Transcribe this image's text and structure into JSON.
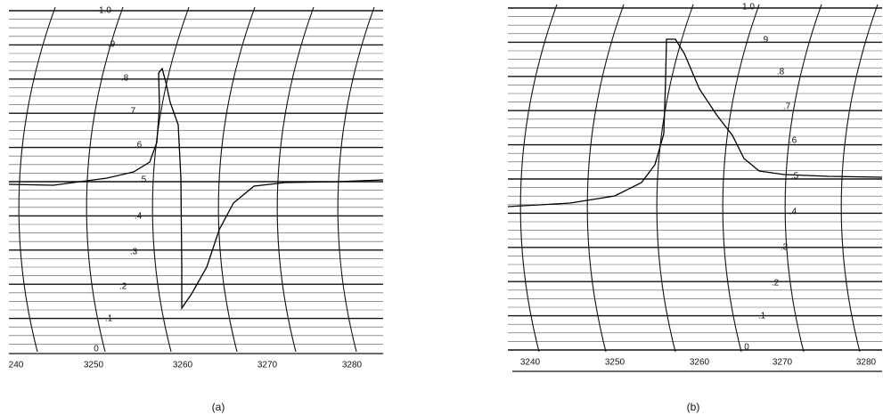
{
  "panels": [
    {
      "caption": "(a)",
      "y_labels": [
        "1.0",
        ".9",
        ".8",
        ".7",
        ".6",
        ".5",
        ".4",
        ".3",
        ".2",
        ".1",
        "0"
      ],
      "x_labels": [
        "240",
        "3250",
        "3260",
        "3270",
        "3280"
      ]
    },
    {
      "caption": "(b)",
      "y_labels": [
        "1.0",
        ".9",
        ".8",
        ".7",
        ".6",
        ".5",
        ".4",
        ".3",
        ".2",
        ".1",
        "0"
      ],
      "x_labels": [
        "3240",
        "3250",
        "3260",
        "3270",
        "3280"
      ]
    }
  ]
}
